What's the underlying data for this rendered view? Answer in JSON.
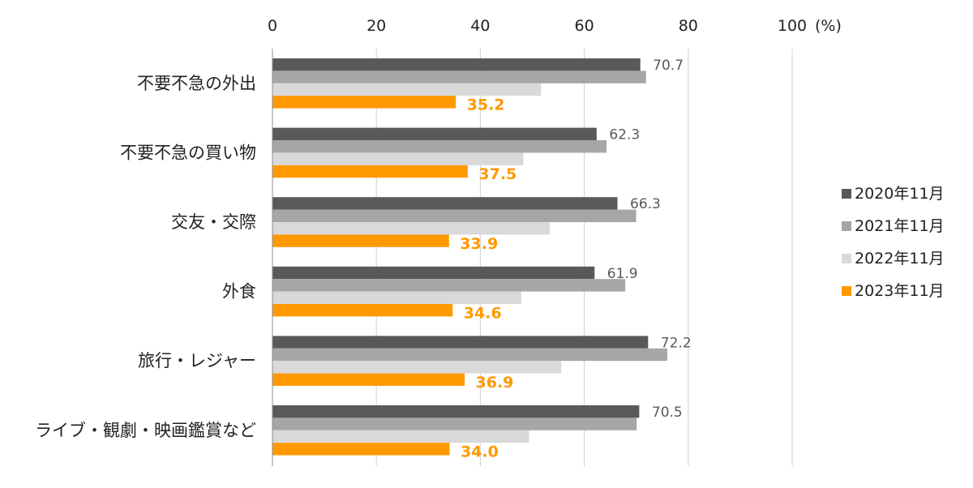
{
  "chart_data": {
    "type": "bar",
    "orientation": "horizontal",
    "title": "",
    "xlabel": "",
    "ylabel": "",
    "unit_label": "(%)",
    "xlim": [
      0,
      100
    ],
    "xticks": [
      0,
      20,
      40,
      60,
      80,
      100
    ],
    "grid": true,
    "legend_position": "right",
    "categories": [
      "不要不急の外出",
      "不要不急の買い物",
      "交友・交際",
      "外食",
      "旅行・レジャー",
      "ライブ・観劇・映画鑑賞など"
    ],
    "series": [
      {
        "name": "2020年11月",
        "color": "#595959",
        "values": [
          70.7,
          62.3,
          66.3,
          61.9,
          72.2,
          70.5
        ],
        "labeled": true
      },
      {
        "name": "2021年11月",
        "color": "#a6a6a6",
        "values": [
          71.8,
          64.2,
          69.9,
          67.8,
          75.9,
          70.0
        ],
        "labeled": false
      },
      {
        "name": "2022年11月",
        "color": "#d9d9d9",
        "values": [
          51.6,
          48.2,
          53.3,
          47.8,
          55.5,
          49.3
        ],
        "labeled": false
      },
      {
        "name": "2023年11月",
        "color": "#ff9900",
        "values": [
          35.2,
          37.5,
          33.9,
          34.6,
          36.9,
          34.0
        ],
        "labeled": true
      }
    ]
  }
}
